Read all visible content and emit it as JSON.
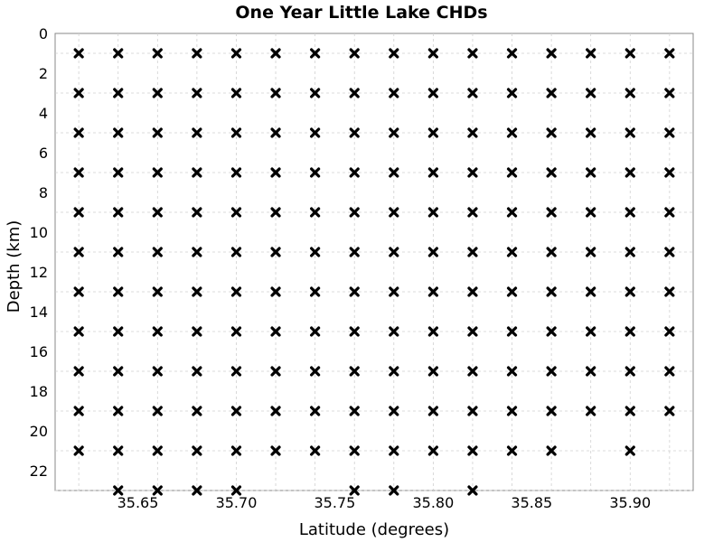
{
  "chart_data": {
    "type": "scatter",
    "title": "One Year Little Lake CHDs",
    "xlabel": "Latitude (degrees)",
    "ylabel": "Depth (km)",
    "xlim": [
      35.608,
      35.932
    ],
    "ylim": [
      0,
      23
    ],
    "y_inverted": true,
    "grid": true,
    "marker": "x",
    "marker_color": "#000000",
    "x_ticks": [
      35.65,
      35.7,
      35.75,
      35.8,
      35.85,
      35.9
    ],
    "x_tick_labels": [
      "35.65",
      "35.70",
      "35.75",
      "35.80",
      "35.85",
      "35.90"
    ],
    "y_ticks": [
      0,
      2,
      4,
      6,
      8,
      10,
      12,
      14,
      16,
      18,
      20,
      22
    ],
    "y_tick_labels": [
      "0",
      "2",
      "4",
      "6",
      "8",
      "10",
      "12",
      "14",
      "16",
      "18",
      "20",
      "22"
    ],
    "grid_x": [
      35.62,
      35.64,
      35.66,
      35.68,
      35.7,
      35.72,
      35.74,
      35.76,
      35.78,
      35.8,
      35.82,
      35.84,
      35.86,
      35.88,
      35.9,
      35.92
    ],
    "grid_y": [
      1,
      3,
      5,
      7,
      9,
      11,
      13,
      15,
      17,
      19,
      21,
      23
    ],
    "points": [
      [
        35.62,
        1
      ],
      [
        35.64,
        1
      ],
      [
        35.66,
        1
      ],
      [
        35.68,
        1
      ],
      [
        35.7,
        1
      ],
      [
        35.72,
        1
      ],
      [
        35.74,
        1
      ],
      [
        35.76,
        1
      ],
      [
        35.78,
        1
      ],
      [
        35.8,
        1
      ],
      [
        35.82,
        1
      ],
      [
        35.84,
        1
      ],
      [
        35.86,
        1
      ],
      [
        35.88,
        1
      ],
      [
        35.9,
        1
      ],
      [
        35.92,
        1
      ],
      [
        35.62,
        3
      ],
      [
        35.64,
        3
      ],
      [
        35.66,
        3
      ],
      [
        35.68,
        3
      ],
      [
        35.7,
        3
      ],
      [
        35.72,
        3
      ],
      [
        35.74,
        3
      ],
      [
        35.76,
        3
      ],
      [
        35.78,
        3
      ],
      [
        35.8,
        3
      ],
      [
        35.82,
        3
      ],
      [
        35.84,
        3
      ],
      [
        35.86,
        3
      ],
      [
        35.88,
        3
      ],
      [
        35.9,
        3
      ],
      [
        35.92,
        3
      ],
      [
        35.62,
        5
      ],
      [
        35.64,
        5
      ],
      [
        35.66,
        5
      ],
      [
        35.68,
        5
      ],
      [
        35.7,
        5
      ],
      [
        35.72,
        5
      ],
      [
        35.74,
        5
      ],
      [
        35.76,
        5
      ],
      [
        35.78,
        5
      ],
      [
        35.8,
        5
      ],
      [
        35.82,
        5
      ],
      [
        35.84,
        5
      ],
      [
        35.86,
        5
      ],
      [
        35.88,
        5
      ],
      [
        35.9,
        5
      ],
      [
        35.92,
        5
      ],
      [
        35.62,
        7
      ],
      [
        35.64,
        7
      ],
      [
        35.66,
        7
      ],
      [
        35.68,
        7
      ],
      [
        35.7,
        7
      ],
      [
        35.72,
        7
      ],
      [
        35.74,
        7
      ],
      [
        35.76,
        7
      ],
      [
        35.78,
        7
      ],
      [
        35.8,
        7
      ],
      [
        35.82,
        7
      ],
      [
        35.84,
        7
      ],
      [
        35.86,
        7
      ],
      [
        35.88,
        7
      ],
      [
        35.9,
        7
      ],
      [
        35.92,
        7
      ],
      [
        35.62,
        9
      ],
      [
        35.64,
        9
      ],
      [
        35.66,
        9
      ],
      [
        35.68,
        9
      ],
      [
        35.7,
        9
      ],
      [
        35.72,
        9
      ],
      [
        35.74,
        9
      ],
      [
        35.76,
        9
      ],
      [
        35.78,
        9
      ],
      [
        35.8,
        9
      ],
      [
        35.82,
        9
      ],
      [
        35.84,
        9
      ],
      [
        35.86,
        9
      ],
      [
        35.88,
        9
      ],
      [
        35.9,
        9
      ],
      [
        35.92,
        9
      ],
      [
        35.62,
        11
      ],
      [
        35.64,
        11
      ],
      [
        35.66,
        11
      ],
      [
        35.68,
        11
      ],
      [
        35.7,
        11
      ],
      [
        35.72,
        11
      ],
      [
        35.74,
        11
      ],
      [
        35.76,
        11
      ],
      [
        35.78,
        11
      ],
      [
        35.8,
        11
      ],
      [
        35.82,
        11
      ],
      [
        35.84,
        11
      ],
      [
        35.86,
        11
      ],
      [
        35.88,
        11
      ],
      [
        35.9,
        11
      ],
      [
        35.92,
        11
      ],
      [
        35.62,
        13
      ],
      [
        35.64,
        13
      ],
      [
        35.66,
        13
      ],
      [
        35.68,
        13
      ],
      [
        35.7,
        13
      ],
      [
        35.72,
        13
      ],
      [
        35.74,
        13
      ],
      [
        35.76,
        13
      ],
      [
        35.78,
        13
      ],
      [
        35.8,
        13
      ],
      [
        35.82,
        13
      ],
      [
        35.84,
        13
      ],
      [
        35.86,
        13
      ],
      [
        35.88,
        13
      ],
      [
        35.9,
        13
      ],
      [
        35.92,
        13
      ],
      [
        35.62,
        15
      ],
      [
        35.64,
        15
      ],
      [
        35.66,
        15
      ],
      [
        35.68,
        15
      ],
      [
        35.7,
        15
      ],
      [
        35.72,
        15
      ],
      [
        35.74,
        15
      ],
      [
        35.76,
        15
      ],
      [
        35.78,
        15
      ],
      [
        35.8,
        15
      ],
      [
        35.82,
        15
      ],
      [
        35.84,
        15
      ],
      [
        35.86,
        15
      ],
      [
        35.88,
        15
      ],
      [
        35.9,
        15
      ],
      [
        35.92,
        15
      ],
      [
        35.62,
        17
      ],
      [
        35.64,
        17
      ],
      [
        35.66,
        17
      ],
      [
        35.68,
        17
      ],
      [
        35.7,
        17
      ],
      [
        35.72,
        17
      ],
      [
        35.74,
        17
      ],
      [
        35.76,
        17
      ],
      [
        35.78,
        17
      ],
      [
        35.8,
        17
      ],
      [
        35.82,
        17
      ],
      [
        35.84,
        17
      ],
      [
        35.86,
        17
      ],
      [
        35.88,
        17
      ],
      [
        35.9,
        17
      ],
      [
        35.92,
        17
      ],
      [
        35.62,
        19
      ],
      [
        35.64,
        19
      ],
      [
        35.66,
        19
      ],
      [
        35.68,
        19
      ],
      [
        35.7,
        19
      ],
      [
        35.72,
        19
      ],
      [
        35.74,
        19
      ],
      [
        35.76,
        19
      ],
      [
        35.78,
        19
      ],
      [
        35.8,
        19
      ],
      [
        35.82,
        19
      ],
      [
        35.84,
        19
      ],
      [
        35.86,
        19
      ],
      [
        35.88,
        19
      ],
      [
        35.9,
        19
      ],
      [
        35.92,
        19
      ],
      [
        35.62,
        21
      ],
      [
        35.64,
        21
      ],
      [
        35.66,
        21
      ],
      [
        35.68,
        21
      ],
      [
        35.7,
        21
      ],
      [
        35.72,
        21
      ],
      [
        35.74,
        21
      ],
      [
        35.76,
        21
      ],
      [
        35.78,
        21
      ],
      [
        35.8,
        21
      ],
      [
        35.82,
        21
      ],
      [
        35.84,
        21
      ],
      [
        35.86,
        21
      ],
      [
        35.9,
        21
      ],
      [
        35.64,
        23
      ],
      [
        35.66,
        23
      ],
      [
        35.68,
        23
      ],
      [
        35.7,
        23
      ],
      [
        35.76,
        23
      ],
      [
        35.78,
        23
      ],
      [
        35.82,
        23
      ]
    ]
  }
}
